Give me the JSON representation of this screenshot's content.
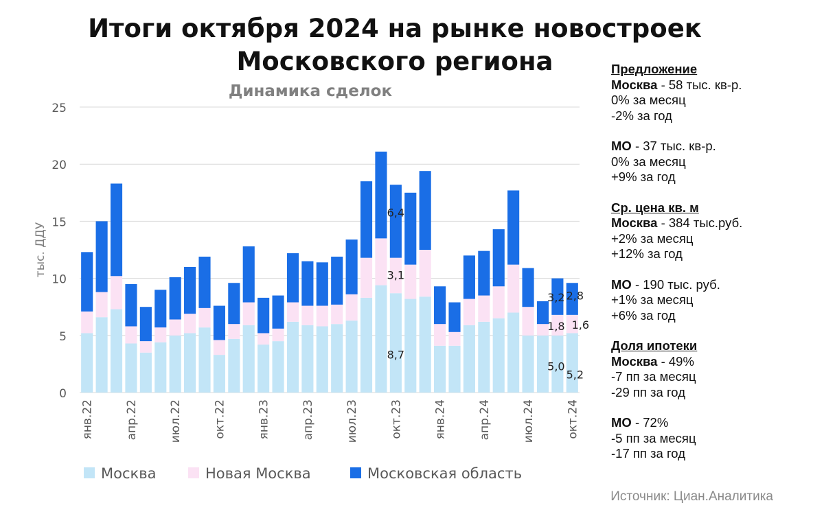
{
  "title_line1": "Итоги октября 2024 на рынке новостроек",
  "title_line2": "Московского региона",
  "chart_data": {
    "type": "bar",
    "stacked": true,
    "title": "Динамика сделок",
    "ylabel": "тыс. ДДУ",
    "xlabel": "",
    "ylim": [
      0,
      25
    ],
    "yticks": [
      0,
      5,
      10,
      15,
      20,
      25
    ],
    "grid": true,
    "legend_position": "bottom",
    "categories": [
      "янв.22",
      "фев.22",
      "мар.22",
      "апр.22",
      "май.22",
      "июн.22",
      "июл.22",
      "авг.22",
      "сен.22",
      "окт.22",
      "ноя.22",
      "дек.22",
      "янв.23",
      "фев.23",
      "мар.23",
      "апр.23",
      "май.23",
      "июн.23",
      "июл.23",
      "авг.23",
      "сен.23",
      "окт.23",
      "ноя.23",
      "дек.23",
      "янв.24",
      "фев.24",
      "мар.24",
      "апр.24",
      "май.24",
      "июн.24",
      "июл.24",
      "авг.24",
      "сен.24",
      "окт.24"
    ],
    "tick_labels": [
      "янв.22",
      "",
      "",
      "апр.22",
      "",
      "",
      "июл.22",
      "",
      "",
      "окт.22",
      "",
      "",
      "янв.23",
      "",
      "",
      "апр.23",
      "",
      "",
      "июл.23",
      "",
      "",
      "окт.23",
      "",
      "",
      "янв.24",
      "",
      "",
      "апр.24",
      "",
      "",
      "июл.24",
      "",
      "",
      "окт.24"
    ],
    "series": [
      {
        "name": "Москва",
        "color": "#c2e5f7",
        "values": [
          5.2,
          6.6,
          7.3,
          4.3,
          3.5,
          4.4,
          5.0,
          5.2,
          5.7,
          3.3,
          4.7,
          5.9,
          4.2,
          4.5,
          6.2,
          5.9,
          5.8,
          6.0,
          6.3,
          8.3,
          9.4,
          8.7,
          8.2,
          8.4,
          4.1,
          4.1,
          5.9,
          6.2,
          6.5,
          7.0,
          5.0,
          5.0,
          5.0,
          5.2
        ]
      },
      {
        "name": "Новая Москва",
        "color": "#fbe2f4",
        "values": [
          1.9,
          2.2,
          2.9,
          1.5,
          1.0,
          1.3,
          1.4,
          1.7,
          1.7,
          1.3,
          1.3,
          2.0,
          1.0,
          1.1,
          1.7,
          1.7,
          1.8,
          1.7,
          2.3,
          3.5,
          4.1,
          3.1,
          3.0,
          4.1,
          1.9,
          1.2,
          2.3,
          2.3,
          2.8,
          4.2,
          2.5,
          1.0,
          1.8,
          1.6
        ]
      },
      {
        "name": "Московская область",
        "color": "#1a6ee6",
        "values": [
          5.2,
          6.2,
          8.1,
          3.7,
          3.0,
          3.3,
          3.7,
          4.1,
          4.5,
          3.0,
          3.6,
          4.9,
          3.1,
          2.9,
          4.3,
          3.9,
          3.8,
          4.2,
          4.8,
          6.7,
          7.6,
          6.4,
          6.3,
          6.9,
          3.3,
          2.6,
          3.8,
          3.9,
          5.0,
          6.5,
          3.4,
          2.0,
          3.2,
          2.8
        ]
      }
    ],
    "annotations": [
      {
        "text": "6,4",
        "category": "окт.23",
        "series": "Московская область"
      },
      {
        "text": "3,1",
        "category": "окт.23",
        "series": "Новая Москва"
      },
      {
        "text": "8,7",
        "category": "окт.23",
        "series": "Москва"
      },
      {
        "text": "3,2",
        "category": "сен.24",
        "series": "Московская область"
      },
      {
        "text": "1,8",
        "category": "сен.24",
        "series": "Новая Москва"
      },
      {
        "text": "5,0",
        "category": "сен.24",
        "series": "Москва"
      },
      {
        "text": "2,8",
        "category": "окт.24",
        "series": "Московская область"
      },
      {
        "text": "1,6",
        "category": "окт.24",
        "series": "Новая Москва"
      },
      {
        "text": "5,2",
        "category": "окт.24",
        "series": "Москва"
      }
    ]
  },
  "panel": {
    "supply": {
      "heading": "Предложение",
      "moscow_region": "Москва",
      "moscow_value": " - 58 тыс. кв-р.",
      "moscow_lines": [
        "0% за месяц",
        "-2% за год"
      ],
      "mo_region": "МО",
      "mo_value": " - 37 тыс. кв-р.",
      "mo_lines": [
        "0% за месяц",
        "+9% за год"
      ]
    },
    "price": {
      "heading": "Ср. цена кв. м",
      "moscow_region": "Москва",
      "moscow_value": " - 384 тыс.руб.",
      "moscow_lines": [
        "+2% за месяц",
        "+12% за год"
      ],
      "mo_region": "МО",
      "mo_value": " - 190 тыс. руб.",
      "mo_lines": [
        "+1% за месяц",
        "+6% за год"
      ]
    },
    "mortgage": {
      "heading": "Доля ипотеки",
      "moscow_region": "Москва",
      "moscow_value": " - 49%",
      "moscow_lines": [
        "-7 пп за месяц",
        "-29 пп за год"
      ],
      "mo_region": "МО",
      "mo_value": " - 72%",
      "mo_lines": [
        "-5 пп за месяц",
        "-17 пп за год"
      ]
    }
  },
  "source": "Источник: Циан.Аналитика"
}
